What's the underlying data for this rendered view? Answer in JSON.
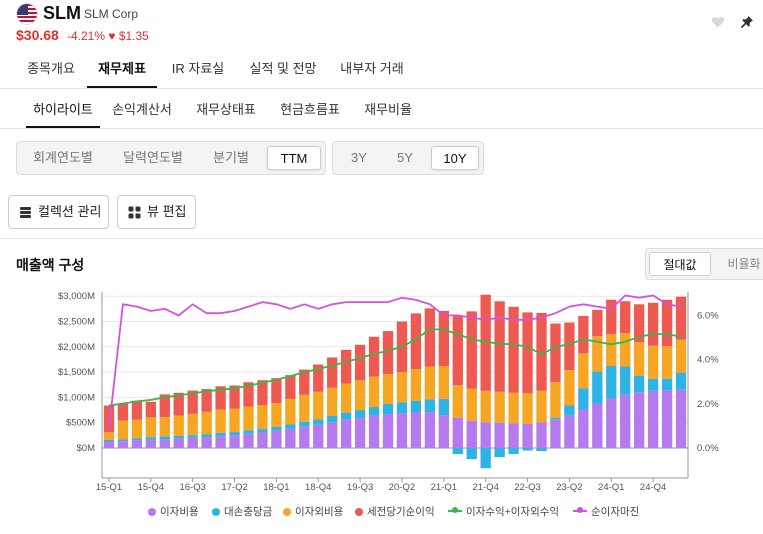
{
  "header": {
    "ticker": "SLM",
    "company": "SLM Corp",
    "price": "$30.68",
    "change": "-4.21% ♥ $1.35"
  },
  "main_tabs": [
    "종목개요",
    "재무제표",
    "IR 자료실",
    "실적 및 전망",
    "내부자 거래"
  ],
  "sub_tabs": [
    "하이라이트",
    "손익계산서",
    "재무상태표",
    "현금흐름표",
    "재무비율"
  ],
  "period_options": [
    "회계연도별",
    "달력연도별",
    "분기별",
    "TTM"
  ],
  "range_options": [
    "3Y",
    "5Y",
    "10Y"
  ],
  "buttons": {
    "columns": "컬렉션 관리",
    "view_edit": "뷰 편집"
  },
  "chart_section": {
    "title": "매출액 구성",
    "toggle": [
      "절대값",
      "비율화"
    ]
  },
  "legend": [
    "이자비용",
    "대손충당금",
    "이자외비용",
    "세전당기순이익",
    "이자수익+이자외수익",
    "순이자마진"
  ],
  "colors": {
    "interest_expense": "#b57aee",
    "provision": "#2fb3e6",
    "nonint_expense": "#f5a623",
    "pretax": "#ee5a52",
    "revenue_line": "#3cb54a",
    "nim_line": "#d452e0",
    "accent_red": "#e03131"
  },
  "chart_data": {
    "type": "bar",
    "stacked": true,
    "x_tick_labels": [
      "15-Q1",
      "15-Q4",
      "16-Q3",
      "17-Q2",
      "18-Q1",
      "18-Q4",
      "19-Q3",
      "20-Q2",
      "21-Q1",
      "21-Q4",
      "22-Q3",
      "23-Q2",
      "24-Q1",
      "24-Q4"
    ],
    "y_ticks_left": [
      "$0M",
      "$500M",
      "$1,000M",
      "$1,500M",
      "$2,000M",
      "$2,500M",
      "$3,000M"
    ],
    "y_ticks_right": [
      "0.0%",
      "2.0%",
      "4.0%",
      "6.0%"
    ],
    "ylim_left": [
      -500,
      3000
    ],
    "ylim_right": [
      -1.1,
      7.0
    ],
    "series": [
      {
        "name": "이자비용",
        "values": [
          120,
          135,
          150,
          160,
          175,
          190,
          200,
          215,
          235,
          255,
          280,
          305,
          340,
          380,
          420,
          460,
          510,
          560,
          600,
          640,
          670,
          690,
          700,
          710,
          650,
          600,
          540,
          510,
          500,
          490,
          480,
          510,
          560,
          640,
          760,
          880,
          980,
          1050,
          1100,
          1130,
          1140,
          1150
        ]
      },
      {
        "name": "대손충당금",
        "values": [
          40,
          35,
          40,
          55,
          55,
          50,
          55,
          60,
          65,
          60,
          70,
          70,
          75,
          90,
          100,
          110,
          130,
          140,
          150,
          170,
          200,
          210,
          230,
          250,
          320,
          -120,
          -220,
          -400,
          -180,
          -120,
          -50,
          -60,
          40,
          200,
          420,
          630,
          640,
          560,
          330,
          240,
          230,
          340
        ]
      },
      {
        "name": "이자외비용",
        "values": [
          150,
          370,
          370,
          390,
          380,
          400,
          420,
          440,
          460,
          460,
          470,
          470,
          470,
          500,
          530,
          540,
          550,
          570,
          590,
          600,
          590,
          600,
          630,
          650,
          650,
          640,
          630,
          620,
          610,
          600,
          600,
          620,
          700,
          700,
          690,
          700,
          630,
          660,
          660,
          650,
          640,
          650
        ]
      },
      {
        "name": "세전당기순이익",
        "values": [
          530,
          340,
          375,
          310,
          450,
          450,
          460,
          450,
          460,
          460,
          480,
          495,
          495,
          470,
          500,
          540,
          600,
          670,
          700,
          790,
          850,
          1000,
          1100,
          1150,
          1090,
          1370,
          1530,
          1900,
          1790,
          1700,
          1600,
          1540,
          1160,
          940,
          740,
          520,
          680,
          630,
          750,
          850,
          920,
          850
        ]
      },
      {
        "name": "이자수익+이자외수익",
        "values": [
          840,
          880,
          920,
          950,
          1000,
          1040,
          1080,
          1120,
          1150,
          1180,
          1230,
          1290,
          1350,
          1420,
          1500,
          1560,
          1630,
          1700,
          1780,
          1860,
          1920,
          2000,
          2150,
          2350,
          2340,
          2250,
          2150,
          2100,
          2060,
          2050,
          2000,
          1850,
          2000,
          2050,
          2150,
          2100,
          2050,
          2100,
          2200,
          2250,
          2250,
          2200
        ]
      },
      {
        "name": "순이자마진",
        "values": [
          0.9,
          6.5,
          6.4,
          6.2,
          6.3,
          6.0,
          6.5,
          6.1,
          6.1,
          6.2,
          6.4,
          6.6,
          6.5,
          6.3,
          6.5,
          6.3,
          6.5,
          6.6,
          6.6,
          6.6,
          6.6,
          6.8,
          6.7,
          6.5,
          6.0,
          6.0,
          5.9,
          5.8,
          5.9,
          5.8,
          5.8,
          5.9,
          6.1,
          6.4,
          6.5,
          6.4,
          6.3,
          6.9,
          6.8,
          6.9,
          6.5,
          6.4
        ]
      }
    ]
  }
}
